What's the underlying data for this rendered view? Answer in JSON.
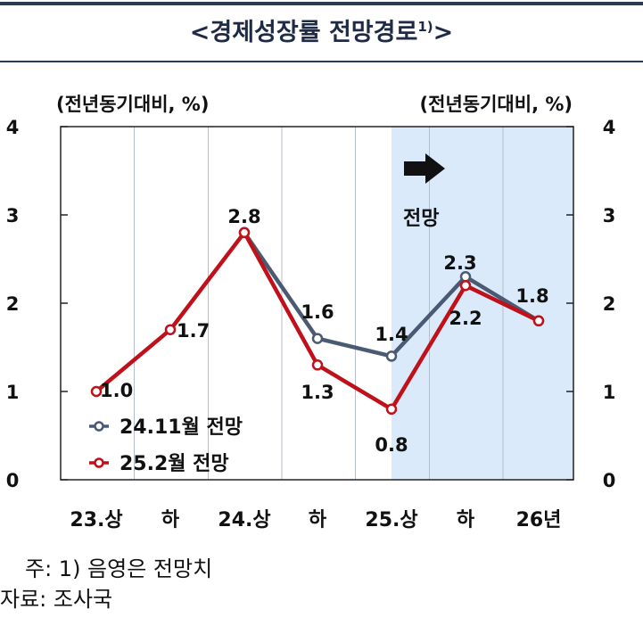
{
  "title": {
    "text": "<경제성장률 전망경로",
    "sup": "1)",
    "close": ">"
  },
  "forecast_label": "전망",
  "notes": {
    "note1": "주: 1) 음영은 전망치",
    "source": "자료: 조사국"
  },
  "colors": {
    "series_1": "#4a5a73",
    "series_2": "#c0101a",
    "shade": "#dbeafa",
    "header_rule": "#2b3a55"
  },
  "chart_data": {
    "type": "line",
    "title": "<경제성장률 전망경로1)>",
    "categories": [
      "23.상",
      "하",
      "24.상",
      "하",
      "25.상",
      "하",
      "26년"
    ],
    "ylabel_left": "(전년동기대비, %)",
    "ylabel_right": "(전년동기대비, %)",
    "ylim": [
      0,
      4
    ],
    "yticks": [
      0,
      1,
      2,
      3,
      4
    ],
    "shaded_from_category": "25.상",
    "shaded_note": "음영은 전망치",
    "legend_position": "lower-left",
    "series": [
      {
        "name": "24.11월 전망",
        "color": "#4a5a73",
        "values": [
          null,
          null,
          2.8,
          1.6,
          1.4,
          2.3,
          1.8
        ],
        "labels": [
          null,
          null,
          null,
          "1.6",
          "1.4",
          "2.3",
          null
        ]
      },
      {
        "name": "25.2월 전망",
        "color": "#c0101a",
        "values": [
          1.0,
          1.7,
          2.8,
          1.3,
          0.8,
          2.2,
          1.8
        ],
        "labels": [
          "1.0",
          "1.7",
          "2.8",
          "1.3",
          "0.8",
          "2.2",
          "1.8"
        ]
      }
    ]
  }
}
